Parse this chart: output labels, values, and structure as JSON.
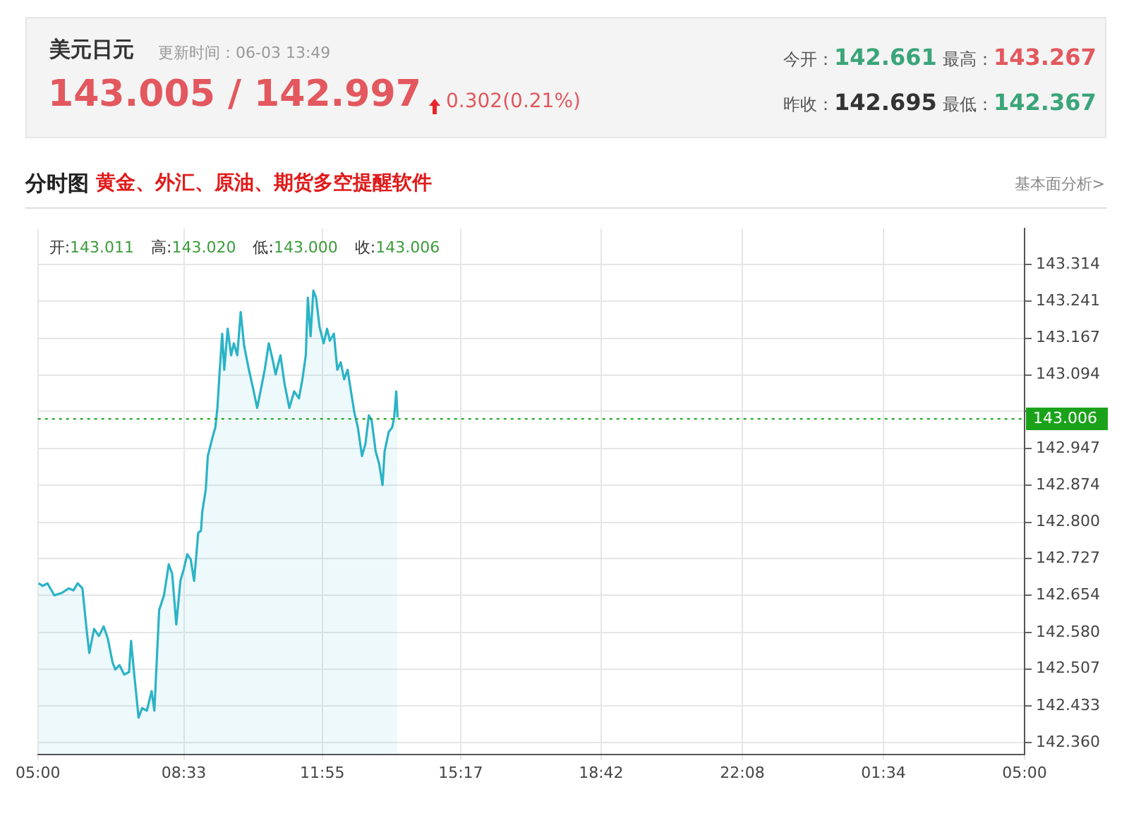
{
  "chart_data": {
    "type": "area",
    "title": "美元日元",
    "subtitle": "更新时间：06-03 13:49",
    "annotations": [
      "143.005 / 142.997",
      "0.302(0.21%)",
      "今开：142.661",
      "最高：143.267",
      "昨收：142.695",
      "最低：142.367",
      "分时图",
      "黄金、外汇、原油、期货多空提醒软件",
      "基本面分析>",
      "开:143.011",
      "高:143.020",
      "低:143.000",
      "收:143.006"
    ],
    "x": [
      "--06-03T05:01",
      "--06-03T05:07",
      "--06-03T05:14",
      "--06-03T05:24",
      "--06-03T05:35",
      "--06-03T05:45",
      "--06-03T05:52",
      "--06-03T05:58",
      "--06-03T06:05",
      "--06-03T06:11",
      "--06-03T06:15",
      "--06-03T06:22",
      "--06-03T06:29",
      "--06-03T06:36",
      "--06-03T06:42",
      "--06-03T06:49",
      "--06-03T06:53",
      "--06-03T06:59",
      "--06-03T07:06",
      "--06-03T07:13",
      "--06-03T07:16",
      "--06-03T07:21",
      "--06-03T07:27",
      "--06-03T07:32",
      "--06-03T07:39",
      "--06-03T07:46",
      "--06-03T07:50",
      "--06-03T07:57",
      "--06-03T08:04",
      "--06-03T08:11",
      "--06-03T08:16",
      "--06-03T08:22",
      "--06-03T08:28",
      "--06-03T08:33",
      "--06-03T08:38",
      "--06-03T08:43",
      "--06-03T08:48",
      "--06-03T08:54",
      "--06-03T08:58",
      "--06-03T09:00",
      "--06-03T09:05",
      "--06-03T09:08",
      "--06-03T09:15",
      "--06-03T09:19",
      "--06-03T09:22",
      "--06-03T09:25",
      "--06-03T09:29",
      "--06-03T09:32",
      "--06-03T09:37",
      "--06-03T09:42",
      "--06-03T09:46",
      "--06-03T09:51",
      "--06-03T09:56",
      "--06-03T10:01",
      "--06-03T10:08",
      "--06-03T10:15",
      "--06-03T10:20",
      "--06-03T10:27",
      "--06-03T10:31",
      "--06-03T10:37",
      "--06-03T10:42",
      "--06-03T10:47",
      "--06-03T10:54",
      "--06-03T11:00",
      "--06-03T11:07",
      "--06-03T11:14",
      "--06-03T11:21",
      "--06-03T11:26",
      "--06-03T11:31",
      "--06-03T11:34",
      "--06-03T11:38",
      "--06-03T11:42",
      "--06-03T11:46",
      "--06-03T11:51",
      "--06-03T11:57",
      "--06-03T12:02",
      "--06-03T12:06",
      "--06-03T12:12",
      "--06-03T12:17",
      "--06-03T12:22",
      "--06-03T12:27",
      "--06-03T12:32",
      "--06-03T12:38",
      "--06-03T12:42",
      "--06-03T12:47",
      "--06-03T12:53",
      "--06-03T12:58",
      "--06-03T13:03",
      "--06-03T13:07",
      "--06-03T13:13",
      "--06-03T13:18",
      "--06-03T13:23",
      "--06-03T13:26",
      "--06-03T13:32",
      "--06-03T13:37",
      "--06-03T13:40",
      "--06-03T13:43",
      "--06-03T13:45"
    ],
    "series": [
      {
        "color": "#2bb3c6",
        "values": [
          142.678,
          142.673,
          142.678,
          142.654,
          142.659,
          142.668,
          142.664,
          142.678,
          142.668,
          142.587,
          142.539,
          142.587,
          142.573,
          142.592,
          142.568,
          142.52,
          142.506,
          142.515,
          142.496,
          142.501,
          142.563,
          142.491,
          142.41,
          142.429,
          142.424,
          142.463,
          142.424,
          142.625,
          142.654,
          142.716,
          142.697,
          142.596,
          142.683,
          142.707,
          142.736,
          142.726,
          142.683,
          142.779,
          142.783,
          142.822,
          142.865,
          142.932,
          142.97,
          142.989,
          143.028,
          143.095,
          143.176,
          143.104,
          143.186,
          143.133,
          143.157,
          143.133,
          143.219,
          143.152,
          143.104,
          143.061,
          143.028,
          143.076,
          143.104,
          143.157,
          143.128,
          143.095,
          143.133,
          143.076,
          143.028,
          143.061,
          143.047,
          143.085,
          143.133,
          143.248,
          143.171,
          143.262,
          143.248,
          143.19,
          143.157,
          143.186,
          143.162,
          143.176,
          143.104,
          143.119,
          143.085,
          143.104,
          143.052,
          143.018,
          142.989,
          142.932,
          142.956,
          143.013,
          143.004,
          142.941,
          142.917,
          142.874,
          142.941,
          142.98,
          142.989,
          143.009,
          143.061,
          143.009
        ]
      }
    ],
    "xlim": [
      "--06-03T05:00",
      "--06-04T05:00"
    ],
    "xticks": [
      {
        "value": "--06-03T05:00",
        "label": "05:00"
      },
      {
        "value": "--06-03T08:33",
        "label": "08:33"
      },
      {
        "value": "--06-03T11:55",
        "label": "11:55"
      },
      {
        "value": "--06-03T15:17",
        "label": "15:17"
      },
      {
        "value": "--06-03T18:42",
        "label": "18:42"
      },
      {
        "value": "--06-03T22:08",
        "label": "22:08"
      },
      {
        "value": "--06-04T01:34",
        "label": "01:34"
      },
      {
        "value": "--06-04T05:00",
        "label": "05:00"
      }
    ],
    "ylim": [
      142.337,
      143.386
    ],
    "yticks": [
      {
        "value": 142.36,
        "label": "142.360"
      },
      {
        "value": 142.433,
        "label": "142.433"
      },
      {
        "value": 142.507,
        "label": "142.507"
      },
      {
        "value": 142.58,
        "label": "142.580"
      },
      {
        "value": 142.654,
        "label": "142.654"
      },
      {
        "value": 142.727,
        "label": "142.727"
      },
      {
        "value": 142.8,
        "label": "142.800"
      },
      {
        "value": 142.874,
        "label": "142.874"
      },
      {
        "value": 142.947,
        "label": "142.947"
      },
      {
        "value": 143.021,
        "label": null
      },
      {
        "value": 143.094,
        "label": "143.094"
      },
      {
        "value": 143.167,
        "label": "143.167"
      },
      {
        "value": 143.241,
        "label": "143.241"
      },
      {
        "value": 143.314,
        "label": "143.314"
      }
    ],
    "ref_lines": [
      {
        "axis": "y",
        "value": 143.006,
        "label": "143.006",
        "color": "#1aa31a",
        "line_style": "dotted"
      }
    ],
    "grid": true,
    "legend": false,
    "marker": "none"
  }
}
